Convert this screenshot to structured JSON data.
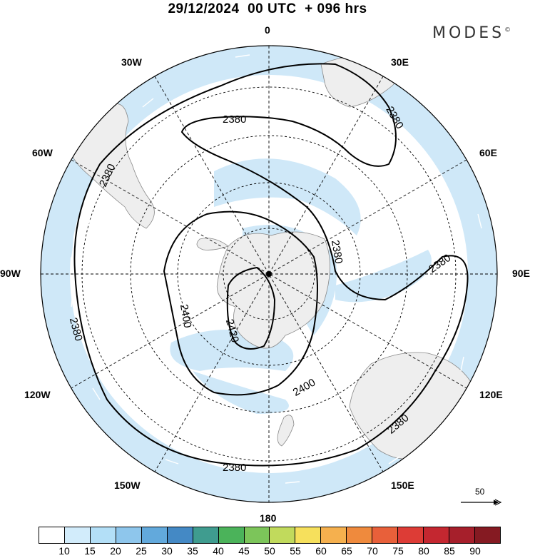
{
  "header": {
    "title": "29/12/2024  00 UTC  + 096 hrs",
    "brand": "MODES",
    "brand_mark": "©"
  },
  "longitude_labels": [
    {
      "text": "0",
      "pos": "top"
    },
    {
      "text": "30E",
      "pos": "top-right"
    },
    {
      "text": "60E",
      "pos": "upper-right"
    },
    {
      "text": "90E",
      "pos": "right"
    },
    {
      "text": "120E",
      "pos": "lower-right"
    },
    {
      "text": "150E",
      "pos": "bottom-right"
    },
    {
      "text": "180",
      "pos": "bottom"
    },
    {
      "text": "150W",
      "pos": "bottom-left"
    },
    {
      "text": "120W",
      "pos": "lower-left"
    },
    {
      "text": "90W",
      "pos": "left"
    },
    {
      "text": "60W",
      "pos": "upper-left"
    },
    {
      "text": "30W",
      "pos": "top-left"
    }
  ],
  "contour_labels": [
    "2380",
    "2380",
    "2380",
    "2380",
    "2380",
    "2380",
    "2400",
    "2400",
    "2420"
  ],
  "reference_vector": {
    "value": "50"
  },
  "colorbar": {
    "ticks": [
      "10",
      "15",
      "20",
      "25",
      "30",
      "35",
      "40",
      "45",
      "50",
      "55",
      "60",
      "65",
      "70",
      "75",
      "80",
      "85",
      "90"
    ],
    "colors": [
      "#ffffff",
      "#d2ecfb",
      "#b3dff7",
      "#8ec6ec",
      "#62a9dc",
      "#4489c5",
      "#3f9c8f",
      "#4bb35a",
      "#7cc55a",
      "#c1da5c",
      "#f6e05c",
      "#f5b04e",
      "#ef8a3d",
      "#e8603a",
      "#dd3c36",
      "#c42730",
      "#a61f2b",
      "#851a22"
    ]
  },
  "colors": {
    "land": "#eeeeee",
    "wind_shade": "#cfe8f8",
    "contour": "#000000"
  }
}
